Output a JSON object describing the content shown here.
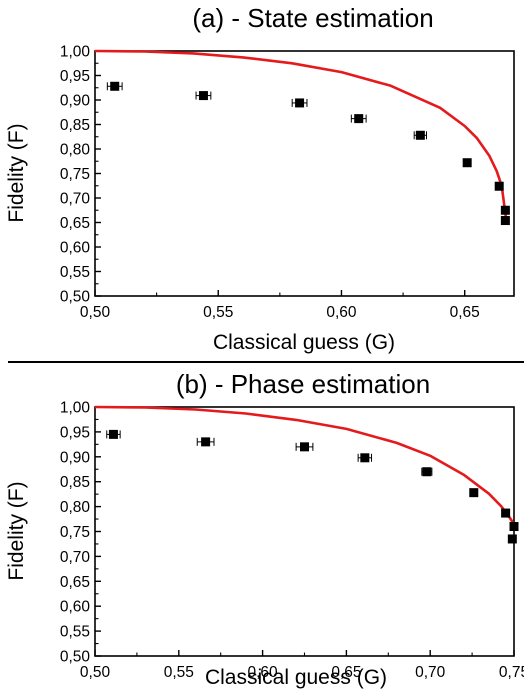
{
  "chart_data": [
    {
      "type": "scatter",
      "title": "(a) - State estimation",
      "xlabel": "Classical guess (G)",
      "ylabel": "Fidelity (F)",
      "xlim": [
        0.5,
        0.67
      ],
      "ylim": [
        0.5,
        1.0
      ],
      "x_ticks": [
        0.5,
        0.55,
        0.6,
        0.65
      ],
      "x_tick_labels": [
        "0,50",
        "0,55",
        "0,60",
        "0,65"
      ],
      "y_ticks": [
        0.5,
        0.55,
        0.6,
        0.65,
        0.7,
        0.75,
        0.8,
        0.85,
        0.9,
        0.95,
        1.0
      ],
      "y_tick_labels": [
        "0,50",
        "0,55",
        "0,60",
        "0,65",
        "0,70",
        "0,75",
        "0,80",
        "0,85",
        "0,90",
        "0,95",
        "1,00"
      ],
      "grid": false,
      "points": [
        {
          "x": 0.508,
          "y": 0.928,
          "xerr": 0.003
        },
        {
          "x": 0.544,
          "y": 0.909,
          "xerr": 0.003
        },
        {
          "x": 0.583,
          "y": 0.894,
          "xerr": 0.003
        },
        {
          "x": 0.607,
          "y": 0.862,
          "xerr": 0.003
        },
        {
          "x": 0.632,
          "y": 0.828,
          "xerr": 0.0025
        },
        {
          "x": 0.651,
          "y": 0.772,
          "xerr": 0.0005
        },
        {
          "x": 0.664,
          "y": 0.724,
          "xerr": 0.0005
        },
        {
          "x": 0.6665,
          "y": 0.675,
          "xerr": 0.0005
        },
        {
          "x": 0.6665,
          "y": 0.654,
          "xerr": 0.0005
        }
      ],
      "curve": {
        "color": "#e41a1c",
        "x": [
          0.5,
          0.52,
          0.54,
          0.56,
          0.58,
          0.6,
          0.62,
          0.64,
          0.65,
          0.655,
          0.66,
          0.663,
          0.665,
          0.6667
        ],
        "y": [
          1.0,
          0.999,
          0.995,
          0.987,
          0.975,
          0.957,
          0.929,
          0.884,
          0.847,
          0.822,
          0.786,
          0.755,
          0.725,
          0.66
        ]
      }
    },
    {
      "type": "scatter",
      "title": "(b) - Phase estimation",
      "xlabel": "Classical guess (G)",
      "ylabel": "Fidelity (F)",
      "xlim": [
        0.5,
        0.75
      ],
      "ylim": [
        0.5,
        1.0
      ],
      "x_ticks": [
        0.5,
        0.55,
        0.6,
        0.65,
        0.7,
        0.75
      ],
      "x_tick_labels": [
        "0,50",
        "0,55",
        "0,60",
        "0,65",
        "0,70",
        "0,75"
      ],
      "y_ticks": [
        0.5,
        0.55,
        0.6,
        0.65,
        0.7,
        0.75,
        0.8,
        0.85,
        0.9,
        0.95,
        1.0
      ],
      "y_tick_labels": [
        "0,50",
        "0,55",
        "0,60",
        "0,65",
        "0,70",
        "0,75",
        "0,80",
        "0,85",
        "0,90",
        "0,95",
        "1,00"
      ],
      "grid": false,
      "points": [
        {
          "x": 0.511,
          "y": 0.945,
          "xerr": 0.004
        },
        {
          "x": 0.566,
          "y": 0.93,
          "xerr": 0.005
        },
        {
          "x": 0.625,
          "y": 0.92,
          "xerr": 0.005
        },
        {
          "x": 0.661,
          "y": 0.898,
          "xerr": 0.004
        },
        {
          "x": 0.698,
          "y": 0.87,
          "xerr": 0.003
        },
        {
          "x": 0.726,
          "y": 0.828,
          "xerr": 0.001
        },
        {
          "x": 0.745,
          "y": 0.787,
          "xerr": 0.001
        },
        {
          "x": 0.75,
          "y": 0.76,
          "xerr": 0.001
        },
        {
          "x": 0.749,
          "y": 0.735,
          "xerr": 0.001
        }
      ],
      "curve": {
        "color": "#e41a1c",
        "x": [
          0.5,
          0.53,
          0.56,
          0.59,
          0.62,
          0.65,
          0.68,
          0.7,
          0.72,
          0.735,
          0.742,
          0.746,
          0.749,
          0.75
        ],
        "y": [
          1.0,
          0.999,
          0.995,
          0.987,
          0.974,
          0.956,
          0.928,
          0.902,
          0.864,
          0.826,
          0.802,
          0.785,
          0.77,
          0.762
        ]
      }
    }
  ]
}
